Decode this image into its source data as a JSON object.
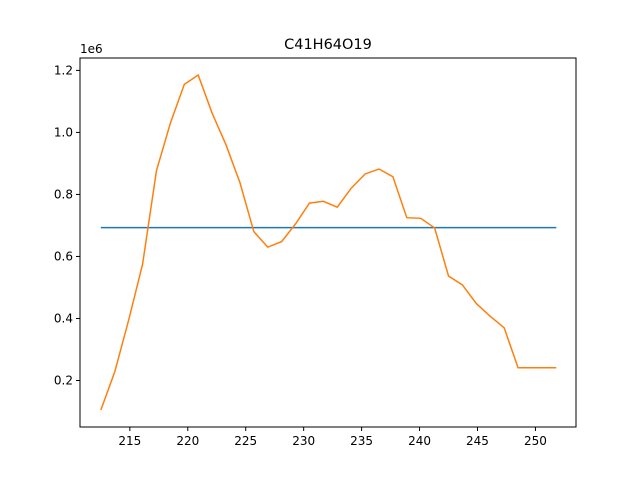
{
  "chart_data": {
    "type": "line",
    "title": "C41H64O19",
    "xlabel": "",
    "ylabel": "",
    "y_multiplier_label": "1e6",
    "xlim": [
      210.7,
      253.5
    ],
    "ylim": [
      50000,
      1240000
    ],
    "x_ticks": [
      215,
      220,
      225,
      230,
      235,
      240,
      245,
      250
    ],
    "y_ticks": [
      200000,
      400000,
      600000,
      800000,
      1000000,
      1200000
    ],
    "x_tick_labels": [
      "215",
      "220",
      "225",
      "230",
      "235",
      "240",
      "245",
      "250"
    ],
    "y_tick_labels": [
      "0.2",
      "0.4",
      "0.6",
      "0.8",
      "1.0",
      "1.2"
    ],
    "grid": false,
    "series": [
      {
        "color": "#1f77b4",
        "x": [
          212.5,
          251.8
        ],
        "y": [
          693000,
          693000
        ]
      },
      {
        "color": "#ff7f0e",
        "x": [
          212.5,
          213.7,
          214.9,
          216.1,
          217.3,
          218.5,
          219.7,
          220.9,
          222.1,
          223.3,
          224.5,
          225.7,
          226.9,
          228.1,
          229.3,
          230.5,
          231.7,
          232.9,
          234.1,
          235.3,
          236.5,
          237.7,
          238.9,
          240.1,
          241.3,
          242.5,
          243.7,
          244.9,
          246.1,
          247.3,
          248.5,
          249.7,
          250.9,
          251.8
        ],
        "y": [
          105000,
          228000,
          395000,
          575000,
          877000,
          1030000,
          1155000,
          1185000,
          1062000,
          960000,
          838000,
          680000,
          630000,
          648000,
          705000,
          772000,
          778000,
          759000,
          820000,
          866000,
          882000,
          857000,
          725000,
          723000,
          692000,
          537000,
          508000,
          448000,
          407000,
          370000,
          241000,
          241000,
          241000,
          241000
        ]
      }
    ]
  }
}
